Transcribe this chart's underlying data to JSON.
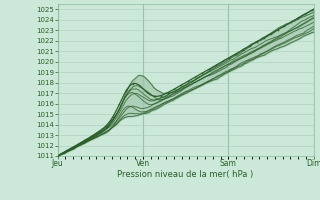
{
  "xlabel": "Pression niveau de la mer( hPa )",
  "x_ticks_labels": [
    "Jeu",
    "Ven",
    "Sam",
    "Dim"
  ],
  "x_ticks_pos": [
    0.0,
    0.333,
    0.667,
    1.0
  ],
  "ylim": [
    1011,
    1025.5
  ],
  "y_ticks": [
    1011,
    1012,
    1013,
    1014,
    1015,
    1016,
    1017,
    1018,
    1019,
    1020,
    1021,
    1022,
    1023,
    1024,
    1025
  ],
  "bg_color": "#cce8d8",
  "grid_major_color": "#88bb99",
  "grid_minor_color": "#aaccbb",
  "line_color": "#2a5e2a",
  "n_lines": 9
}
